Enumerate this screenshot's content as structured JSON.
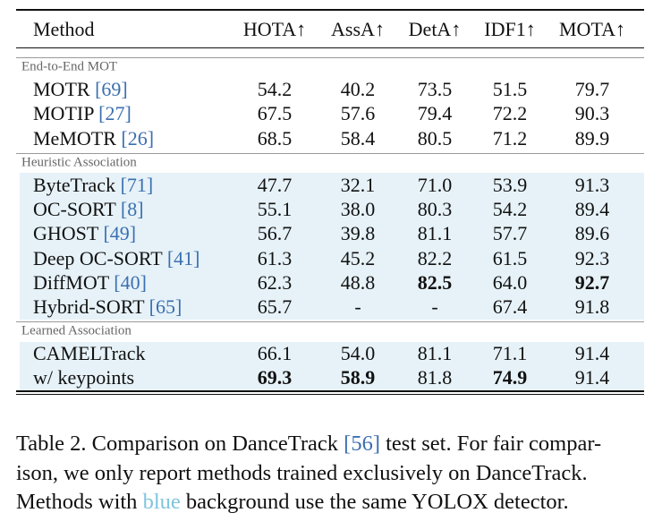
{
  "table": {
    "columns": [
      "Method",
      "HOTA↑",
      "AssA↑",
      "DetA↑",
      "IDF1↑",
      "MOTA↑"
    ],
    "groups": [
      {
        "label": "End-to-End MOT",
        "shaded": false,
        "rows": [
          {
            "method": "MOTR ",
            "cite": "[69]",
            "values": [
              "54.2",
              "40.2",
              "73.5",
              "51.5",
              "79.7"
            ],
            "bold": []
          },
          {
            "method": "MOTIP ",
            "cite": "[27]",
            "values": [
              "67.5",
              "57.6",
              "79.4",
              "72.2",
              "90.3"
            ],
            "bold": []
          },
          {
            "method": "MeMOTR ",
            "cite": "[26]",
            "values": [
              "68.5",
              "58.4",
              "80.5",
              "71.2",
              "89.9"
            ],
            "bold": []
          }
        ]
      },
      {
        "label": "Heuristic Association",
        "shaded": true,
        "rows": [
          {
            "method": "ByteTrack ",
            "cite": "[71]",
            "values": [
              "47.7",
              "32.1",
              "71.0",
              "53.9",
              "91.3"
            ],
            "bold": []
          },
          {
            "method": "OC-SORT ",
            "cite": "[8]",
            "values": [
              "55.1",
              "38.0",
              "80.3",
              "54.2",
              "89.4"
            ],
            "bold": []
          },
          {
            "method": "GHOST ",
            "cite": "[49]",
            "values": [
              "56.7",
              "39.8",
              "81.1",
              "57.7",
              "89.6"
            ],
            "bold": []
          },
          {
            "method": "Deep OC-SORT ",
            "cite": "[41]",
            "values": [
              "61.3",
              "45.2",
              "82.2",
              "61.5",
              "92.3"
            ],
            "bold": []
          },
          {
            "method": "DiffMOT ",
            "cite": "[40]",
            "values": [
              "62.3",
              "48.8",
              "82.5",
              "64.0",
              "92.7"
            ],
            "bold": [
              2,
              4
            ]
          },
          {
            "method": "Hybrid-SORT ",
            "cite": "[65]",
            "values": [
              "65.7",
              "-",
              "-",
              "67.4",
              "91.8"
            ],
            "bold": []
          }
        ]
      },
      {
        "label": "Learned Association",
        "shaded": true,
        "rows": [
          {
            "method": "CAMELTrack",
            "cite": null,
            "values": [
              "66.1",
              "54.0",
              "81.1",
              "71.1",
              "91.4"
            ],
            "bold": []
          },
          {
            "method": "w/ keypoints",
            "cite": null,
            "values": [
              "69.3",
              "58.9",
              "81.8",
              "74.9",
              "91.4"
            ],
            "bold": [
              0,
              1,
              3
            ]
          }
        ]
      }
    ]
  },
  "caption": {
    "lines": [
      [
        {
          "text": "Table 2. Comparison on DanceTrack "
        },
        {
          "text": "[56]",
          "color": "#3b6fb0"
        },
        {
          "text": " test set. For fair compar-"
        }
      ],
      [
        {
          "text": "ison, we only report methods trained exclusively on DanceTrack."
        }
      ],
      [
        {
          "text": "Methods with "
        },
        {
          "text": "blue",
          "color": "#7fc4df"
        },
        {
          "text": " background use the same YOLOX detector."
        }
      ]
    ]
  }
}
